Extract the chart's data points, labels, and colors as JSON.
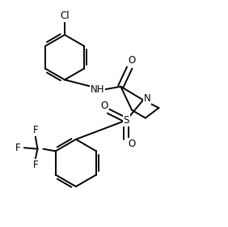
{
  "bg_color": "#ffffff",
  "line_color": "#000000",
  "line_width": 1.4,
  "font_size": 8.5,
  "figsize": [
    2.82,
    2.8
  ],
  "dpi": 100,
  "xlim": [
    0,
    10
  ],
  "ylim": [
    0,
    10
  ]
}
